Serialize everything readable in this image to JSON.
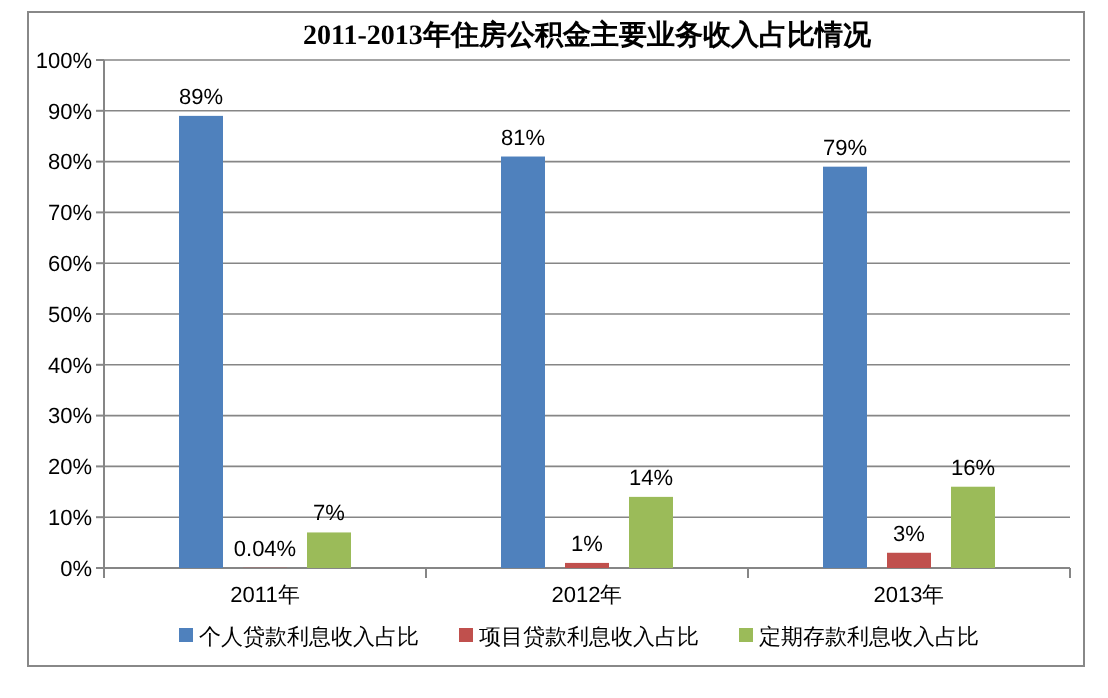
{
  "chart_data": {
    "type": "bar",
    "title": "2011-2013年住房公积金主要业务收入占比情况",
    "categories": [
      "2011年",
      "2012年",
      "2013年"
    ],
    "series": [
      {
        "name": "个人贷款利息收入占比",
        "color": "#4f81bd",
        "values": [
          89,
          81,
          79
        ],
        "value_labels": [
          "89%",
          "81%",
          "79%"
        ]
      },
      {
        "name": "项目贷款利息收入占比",
        "color": "#c0504d",
        "values": [
          0.04,
          1,
          3
        ],
        "value_labels": [
          "0.04%",
          "1%",
          "3%"
        ]
      },
      {
        "name": "定期存款利息收入占比",
        "color": "#9bbb59",
        "values": [
          7,
          14,
          16
        ],
        "value_labels": [
          "7%",
          "14%",
          "16%"
        ]
      }
    ],
    "ylim": [
      0,
      100
    ],
    "yticks": [
      {
        "value": 0,
        "label": "0%"
      },
      {
        "value": 10,
        "label": "10%"
      },
      {
        "value": 20,
        "label": "20%"
      },
      {
        "value": 30,
        "label": "30%"
      },
      {
        "value": 40,
        "label": "40%"
      },
      {
        "value": 50,
        "label": "50%"
      },
      {
        "value": 60,
        "label": "60%"
      },
      {
        "value": 70,
        "label": "70%"
      },
      {
        "value": 80,
        "label": "80%"
      },
      {
        "value": 90,
        "label": "90%"
      },
      {
        "value": 100,
        "label": "100%"
      }
    ],
    "grid": "y",
    "legend": "bottom"
  }
}
